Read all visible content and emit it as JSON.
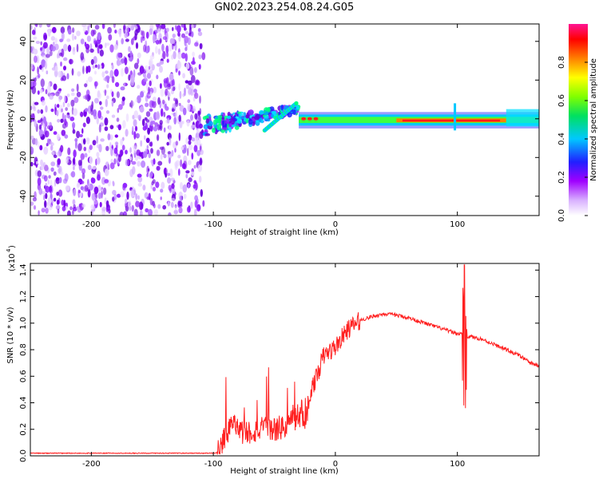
{
  "title": "GN02.2023.254.08.24.G05",
  "chart_data": [
    {
      "type": "heatmap",
      "name": "spectrogram",
      "xlabel": "Height of straight line (km)",
      "ylabel": "Frequency (Hz)",
      "xlim": [
        -250,
        167
      ],
      "ylim": [
        -50,
        49
      ],
      "xticks": [
        -200,
        -100,
        0,
        100
      ],
      "yticks": [
        -40,
        -20,
        0,
        20,
        40
      ],
      "colorbar": {
        "label": "Normalized spectral amplitude",
        "range": [
          0.0,
          1.0
        ],
        "ticks": [
          0.0,
          0.2,
          0.4,
          0.6,
          0.8
        ],
        "tick_labels": [
          "0.0",
          "0.2",
          "0.4",
          "0.6",
          "0.8"
        ],
        "colors": [
          "#ffffff",
          "#a000ff",
          "#0000ff",
          "#00ffff",
          "#00ff00",
          "#ffff00",
          "#ff8000",
          "#ff0000",
          "#ff1493"
        ]
      },
      "regions": [
        {
          "x": [
            -250,
            -108
          ],
          "f": [
            -50,
            49
          ],
          "amplitude": 0.05,
          "pattern": "noise"
        },
        {
          "x": [
            -108,
            -30
          ],
          "f": [
            -8,
            12
          ],
          "amplitude": 0.35,
          "pattern": "rising-tone"
        },
        {
          "x": [
            -30,
            167
          ],
          "f": [
            -2,
            2
          ],
          "amplitude": 0.9,
          "pattern": "narrow-carrier"
        }
      ]
    },
    {
      "type": "line",
      "name": "snr",
      "xlabel": "Height of straight line (km)",
      "ylabel": "SNR (10 * v/v)",
      "yscale_label": "(x10",
      "yscale_exp": "4",
      "xlim": [
        -250,
        167
      ],
      "ylim": [
        0,
        1.45
      ],
      "xticks": [
        -200,
        -100,
        0,
        100
      ],
      "yticks": [
        0.0,
        0.2,
        0.4,
        0.6,
        0.8,
        1.0,
        1.2,
        1.4
      ],
      "ytick_labels": [
        "0.0",
        "0.2",
        "0.4",
        "0.6",
        "0.8",
        "1.0",
        "1.2",
        "1.4"
      ],
      "color": "#ff2020",
      "x": [
        -250,
        -200,
        -150,
        -100,
        -95,
        -90,
        -85,
        -80,
        -70,
        -60,
        -50,
        -40,
        -35,
        -30,
        -28,
        -25,
        -20,
        -15,
        -10,
        0,
        10,
        20,
        30,
        40,
        50,
        60,
        70,
        80,
        90,
        100,
        104,
        106,
        108,
        110,
        120,
        130,
        140,
        150,
        160,
        167
      ],
      "values": [
        0.02,
        0.02,
        0.02,
        0.02,
        0.03,
        0.15,
        0.25,
        0.18,
        0.18,
        0.2,
        0.2,
        0.22,
        0.3,
        0.25,
        0.35,
        0.25,
        0.5,
        0.6,
        0.75,
        0.82,
        0.95,
        1.02,
        1.05,
        1.07,
        1.06,
        1.04,
        1.01,
        0.98,
        0.95,
        0.92,
        0.92,
        0.6,
        0.9,
        0.9,
        0.88,
        0.84,
        0.8,
        0.76,
        0.7,
        0.68
      ]
    }
  ]
}
